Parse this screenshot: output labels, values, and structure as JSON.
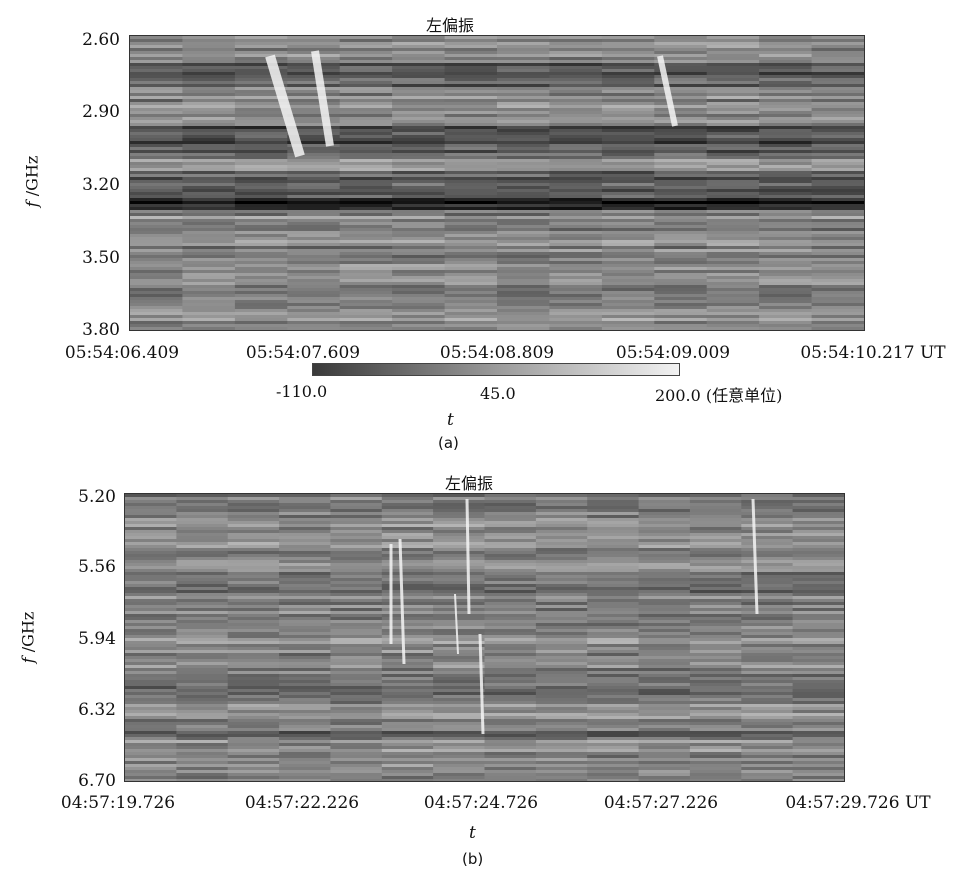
{
  "chart_data": [
    {
      "type": "heatmap",
      "title": "左偏振",
      "ylabel_var": "f",
      "ylabel_unit": "/GHz",
      "xlabel": "t",
      "x_tick_labels": [
        "05:54:06.409",
        "05:54:07.609",
        "05:54:08.809",
        "05:54:09.009",
        "05:54:10.217 UT"
      ],
      "y_tick_labels": [
        "2.60",
        "2.90",
        "3.20",
        "3.50",
        "3.80"
      ],
      "ylim": [
        2.6,
        3.8
      ],
      "colorbar": {
        "min_label": "-110.0",
        "mid_label": "45.0",
        "max_label": "200.0 (任意单位)",
        "range": [
          -110.0,
          200.0
        ]
      },
      "caption": "(a)"
    },
    {
      "type": "heatmap",
      "title": "左偏振",
      "ylabel_var": "f",
      "ylabel_unit": "/GHz",
      "xlabel": "t",
      "x_tick_labels": [
        "04:57:19.726",
        "04:57:22.226",
        "04:57:24.726",
        "04:57:27.226",
        "04:57:29.726 UT"
      ],
      "y_tick_labels": [
        "5.20",
        "5.56",
        "5.94",
        "6.32",
        "6.70"
      ],
      "ylim": [
        5.2,
        6.7
      ],
      "caption": "(b)"
    }
  ]
}
